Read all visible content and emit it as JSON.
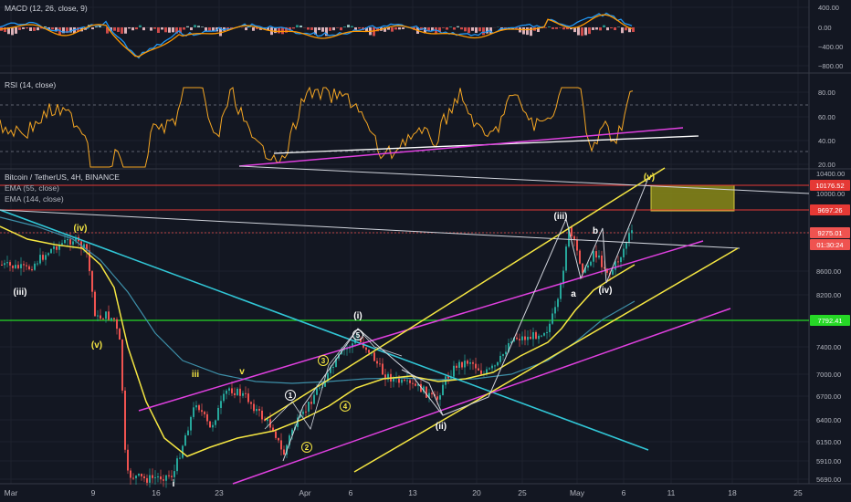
{
  "colors": {
    "bg": "#131722",
    "grid": "#1e222d",
    "axis_text": "#b2b5be",
    "candle_up": "#26a69a",
    "candle_down": "#ef5350",
    "ema55": "#f5e642",
    "ema144": "#3d8fa8",
    "channel_yellow": "#f5e642",
    "channel_magenta": "#e040e0",
    "cyan_line": "#31c6d6",
    "green_line": "#26d826",
    "red_line": "#e53935",
    "white_line": "#d1d4dc",
    "rsi": "#f5a623",
    "macd": "#2196f3",
    "signal": "#ff9800",
    "target_box": "#8a8a18"
  },
  "macd_panel": {
    "title": "MACD (12, 26, close, 9)",
    "y_ticks": [
      "400.00",
      "0.00",
      "−400.00",
      "−800.00"
    ]
  },
  "rsi_panel": {
    "title": "RSI (14, close)",
    "y_ticks": [
      "80.00",
      "60.00",
      "40.00",
      "20.00"
    ]
  },
  "price_panel": {
    "symbol": "Bitcoin / TetherUS, 4H, BINANCE",
    "ema55_label": "EMA (55, close)",
    "ema144_label": "EMA (144, close)",
    "y_ticks": [
      "10400.00",
      "10000.00",
      "8600.00",
      "8200.00",
      "7400.00",
      "7000.00",
      "6700.00",
      "6400.00",
      "6150.00",
      "5910.00",
      "5690.00"
    ],
    "price_tags": [
      {
        "value": "10176.52",
        "color": "#e53935"
      },
      {
        "value": "9697.26",
        "color": "#e53935"
      },
      {
        "value": "9275.01",
        "color": "#ef5350"
      },
      {
        "value": "01:30:24",
        "color": "#ef5350"
      },
      {
        "value": "7792.41",
        "color": "#26d826"
      }
    ],
    "wave_labels": [
      "(iii)",
      "(iv)",
      "(v)",
      "iii",
      "v",
      "i",
      "(i)",
      "(ii)",
      "(iii)",
      "(iv)",
      "(v)",
      "a",
      "b",
      "1",
      "2",
      "3",
      "4",
      "5"
    ]
  },
  "x_axis": {
    "ticks": [
      "Mar",
      "9",
      "16",
      "23",
      "Apr",
      "6",
      "13",
      "20",
      "25",
      "May",
      "6",
      "11",
      "18",
      "25"
    ]
  },
  "chart_data": [
    {
      "type": "line",
      "title": "Bitcoin / TetherUS, 4H, BINANCE",
      "x": [
        "Mar",
        "9",
        "16",
        "23",
        "Apr",
        "6",
        "13",
        "20",
        "25",
        "May",
        "6"
      ],
      "series": [
        {
          "name": "EMA (55, close)",
          "values": [
            8900,
            8300,
            6200,
            6300,
            6500,
            6800,
            6950,
            7000,
            7350,
            8000,
            8700
          ]
        },
        {
          "name": "EMA (144, close)",
          "values": [
            9300,
            9000,
            7800,
            7350,
            7050,
            6950,
            6900,
            6950,
            7150,
            7500,
            8250
          ]
        }
      ],
      "ylim": [
        5690,
        10400
      ]
    },
    {
      "type": "line",
      "title": "RSI (14, close)",
      "series": [
        {
          "name": "RSI (14, close)",
          "values": [
            45,
            68,
            25,
            55,
            40,
            75,
            45,
            70,
            60,
            85,
            60
          ]
        }
      ],
      "ylim": [
        20,
        80
      ]
    },
    {
      "type": "line",
      "title": "MACD (12, 26, close, 9)",
      "series": [
        {
          "name": "MACD",
          "values": [
            0,
            100,
            -700,
            -300,
            -150,
            150,
            50,
            100,
            200,
            350,
            150
          ]
        },
        {
          "name": "Signal",
          "values": [
            0,
            50,
            -550,
            -350,
            -200,
            80,
            80,
            80,
            150,
            300,
            180
          ]
        }
      ],
      "ylim": [
        -800,
        400
      ]
    }
  ]
}
